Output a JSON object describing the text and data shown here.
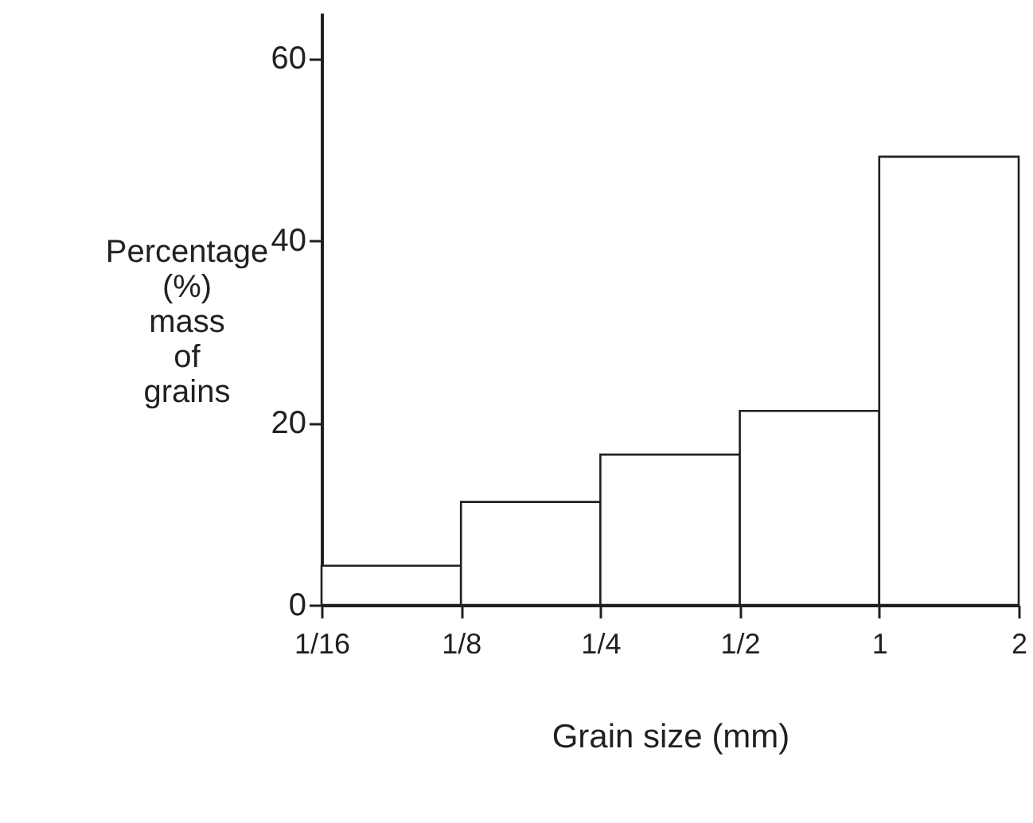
{
  "chart_data": {
    "type": "histogram",
    "xlabel": "Grain size (mm)",
    "ylabel": "Percentage (%) mass of grains",
    "bins": [
      0.0625,
      0.125,
      0.25,
      0.5,
      1,
      2
    ],
    "values": [
      4.3,
      11.3,
      16.5,
      21.3,
      49.2
    ],
    "color": "#ffffff",
    "log": "x",
    "xlim": [
      0.0625,
      2
    ],
    "xticks": [
      {
        "value": 0.0625,
        "label": "1/16"
      },
      {
        "value": 0.125,
        "label": "1/8"
      },
      {
        "value": 0.25,
        "label": "1/4"
      },
      {
        "value": 0.5,
        "label": "1/2"
      },
      1,
      2
    ],
    "ylim": [
      0,
      65
    ],
    "yticks": [
      0,
      20,
      40,
      60
    ],
    "grid": false
  }
}
